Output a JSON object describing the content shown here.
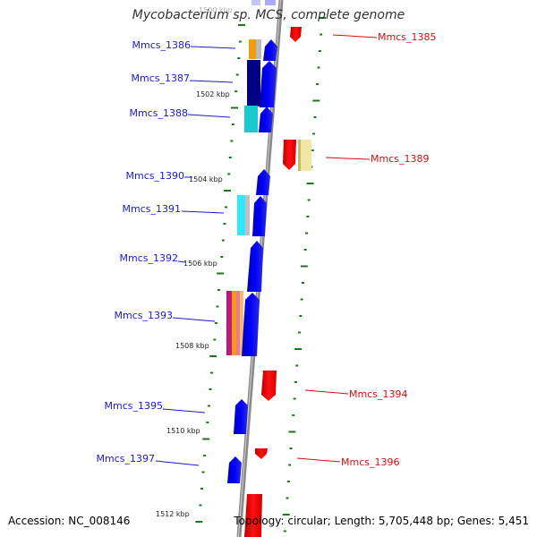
{
  "header": {
    "title": "Mycobacterium sp. MCS, complete genome",
    "faded_label": "1500 kbp"
  },
  "footer": {
    "accession": "Accession: NC_008146",
    "topology": "Topology: circular; Length: 5,705,448 bp; Genes: 5,451"
  },
  "ticks": [
    "1502 kbp",
    "1504 kbp",
    "1506 kbp",
    "1508 kbp",
    "1510 kbp",
    "1512 kbp"
  ],
  "genes": {
    "forward": [
      "Mmcs_1386",
      "Mmcs_1387",
      "Mmcs_1388",
      "Mmcs_1390",
      "Mmcs_1391",
      "Mmcs_1392",
      "Mmcs_1393",
      "Mmcs_1395",
      "Mmcs_1397"
    ],
    "reverse": [
      "Mmcs_1385",
      "Mmcs_1389",
      "Mmcs_1394",
      "Mmcs_1396"
    ]
  },
  "colors": {
    "forward_gene": "#0000ee",
    "reverse_gene": "#ee0000",
    "backbone": "#888888",
    "tick": "#1a7a1a",
    "forward_label": "#1a1acc",
    "reverse_label": "#cc1111",
    "domain_orange": "#f39c12",
    "domain_cyan": "#19c9cf",
    "domain_light_cyan": "#33e6ff",
    "domain_magenta": "#c0187a",
    "domain_pale_yellow": "#efe7a3"
  },
  "icons": {
    "gene_arrow": "pentagon-arrow",
    "tick_mark": "short-dash"
  }
}
